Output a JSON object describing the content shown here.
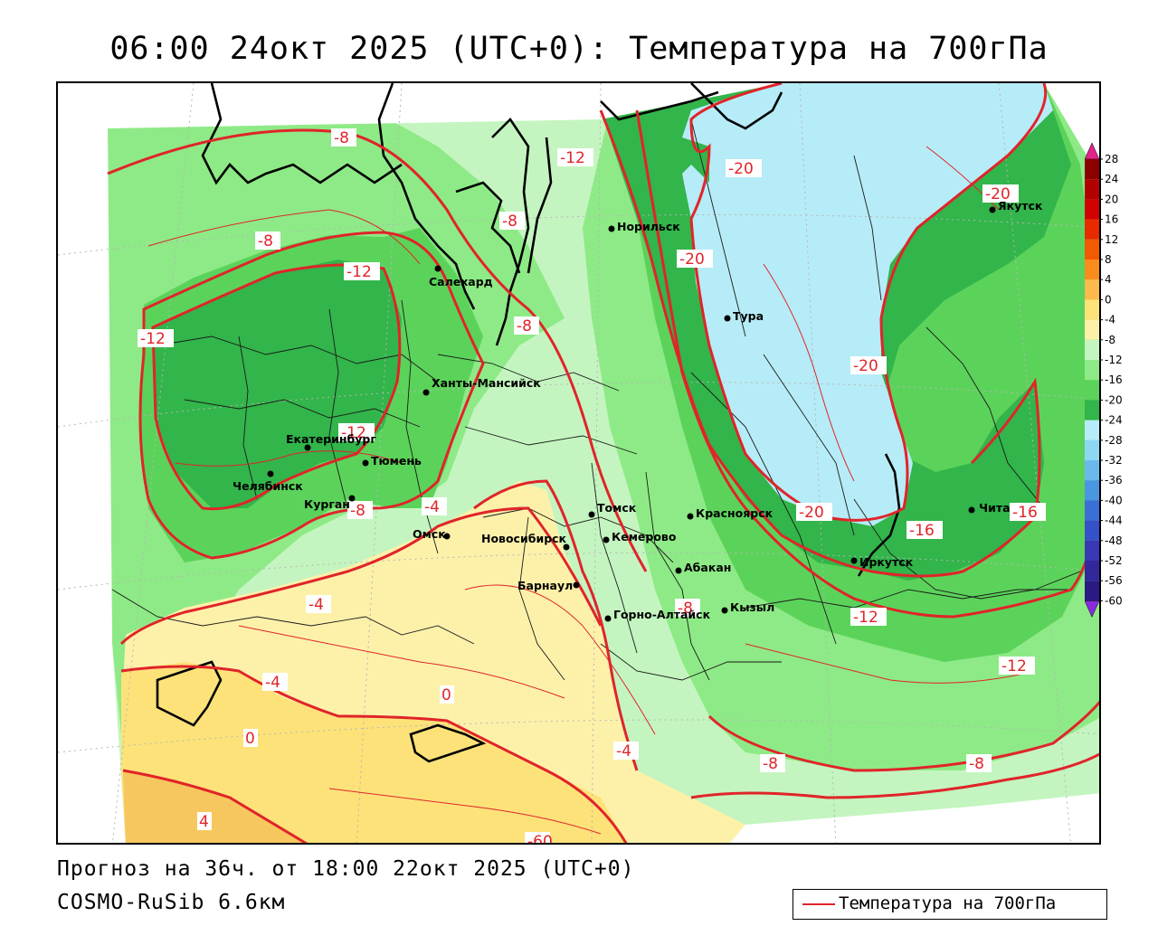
{
  "title": "06:00 24окт 2025 (UTC+0): Температура на 700гПа",
  "footer": {
    "forecast": "Прогноз на 36ч. от 18:00 22окт 2025 (UTC+0)",
    "model": "COSMO-RuSib 6.6км"
  },
  "legend": {
    "label": "Температура на 700гПа",
    "color": "#e0242a"
  },
  "colors": {
    "pale_green": "#c4f5c0",
    "light_green": "#8eea86",
    "mid_green": "#5bd35a",
    "dark_green": "#32b54a",
    "cold_blue": "#b6ecf7",
    "light_yellow": "#fdf1aa",
    "yellow": "#fde27a",
    "orange": "#f7c75f",
    "isotherm": "#e0242a"
  },
  "cities": [
    {
      "name": "Норильск"
    },
    {
      "name": "Салехард"
    },
    {
      "name": "Тура"
    },
    {
      "name": "Якутск"
    },
    {
      "name": "Ханты-Мансийск"
    },
    {
      "name": "Екатеринбург"
    },
    {
      "name": "Тюмень"
    },
    {
      "name": "Челябинск"
    },
    {
      "name": "Курган"
    },
    {
      "name": "Омск"
    },
    {
      "name": "Новосибирск"
    },
    {
      "name": "Томск"
    },
    {
      "name": "Кемерово"
    },
    {
      "name": "Красноярск"
    },
    {
      "name": "Барнаул"
    },
    {
      "name": "Абакан"
    },
    {
      "name": "Горно-Алтайск"
    },
    {
      "name": "Кызыл"
    },
    {
      "name": "Иркутск"
    },
    {
      "name": "Чита"
    }
  ],
  "isotherm_labels": [
    "-8",
    "-12",
    "-20",
    "-20",
    "-8",
    "-8",
    "-12",
    "-20",
    "-12",
    "-8",
    "-20",
    "-12",
    "-4",
    "-8",
    "-20",
    "-16",
    "-16",
    "-4",
    "-12",
    "-4",
    "-12",
    "0",
    "-4",
    "0",
    "-8",
    "-8",
    "4",
    "-8",
    "-60"
  ],
  "colorbar": {
    "ticks": [
      "28",
      "24",
      "20",
      "16",
      "12",
      "8",
      "4",
      "0",
      "-4",
      "-8",
      "-12",
      "-16",
      "-20",
      "-24",
      "-28",
      "-32",
      "-36",
      "-40",
      "-44",
      "-48",
      "-52",
      "-56",
      "-60"
    ],
    "colors": [
      "#8b0000",
      "#b10000",
      "#d20000",
      "#e82a00",
      "#f25a00",
      "#fa8c1e",
      "#fdb94e",
      "#fde27a",
      "#fdf1aa",
      "#c4f5c0",
      "#8eea86",
      "#5bd35a",
      "#32b54a",
      "#b6ecf7",
      "#8ed7f2",
      "#6bb9ec",
      "#4b96e0",
      "#3a6fd6",
      "#3550c8",
      "#3838b4",
      "#32289c",
      "#2a1a84"
    ],
    "top_arrow_color": "#e0248c",
    "bottom_arrow_color": "#8a2be2"
  }
}
